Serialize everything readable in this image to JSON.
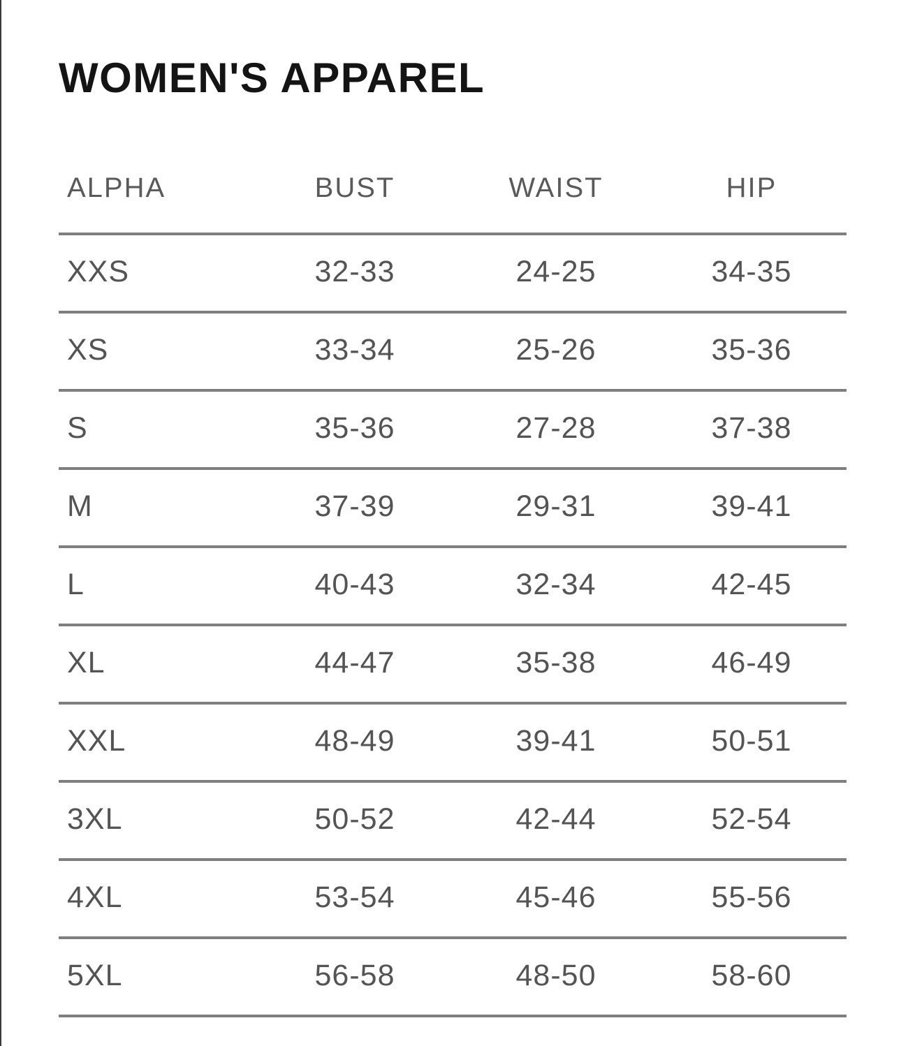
{
  "page": {
    "title": "WOMEN'S APPAREL"
  },
  "table": {
    "columns": [
      "ALPHA",
      "BUST",
      "WAIST",
      "HIP"
    ],
    "rows": [
      {
        "alpha": "XXS",
        "bust": "32-33",
        "waist": "24-25",
        "hip": "34-35"
      },
      {
        "alpha": "XS",
        "bust": "33-34",
        "waist": "25-26",
        "hip": "35-36"
      },
      {
        "alpha": "S",
        "bust": "35-36",
        "waist": "27-28",
        "hip": "37-38"
      },
      {
        "alpha": "M",
        "bust": "37-39",
        "waist": "29-31",
        "hip": "39-41"
      },
      {
        "alpha": "L",
        "bust": "40-43",
        "waist": "32-34",
        "hip": "42-45"
      },
      {
        "alpha": "XL",
        "bust": "44-47",
        "waist": "35-38",
        "hip": "46-49"
      },
      {
        "alpha": "XXL",
        "bust": "48-49",
        "waist": "39-41",
        "hip": "50-51"
      },
      {
        "alpha": "3XL",
        "bust": "50-52",
        "waist": "42-44",
        "hip": "52-54"
      },
      {
        "alpha": "4XL",
        "bust": "53-54",
        "waist": "45-46",
        "hip": "55-56"
      },
      {
        "alpha": "5XL",
        "bust": "56-58",
        "waist": "48-50",
        "hip": "58-60"
      }
    ]
  },
  "colors": {
    "title_text": "#141414",
    "header_text": "#5a5a5a",
    "body_text": "#545454",
    "divider_line": "#7f7f7f",
    "left_edge_border": "#3a3a3a",
    "background": "#ffffff"
  }
}
